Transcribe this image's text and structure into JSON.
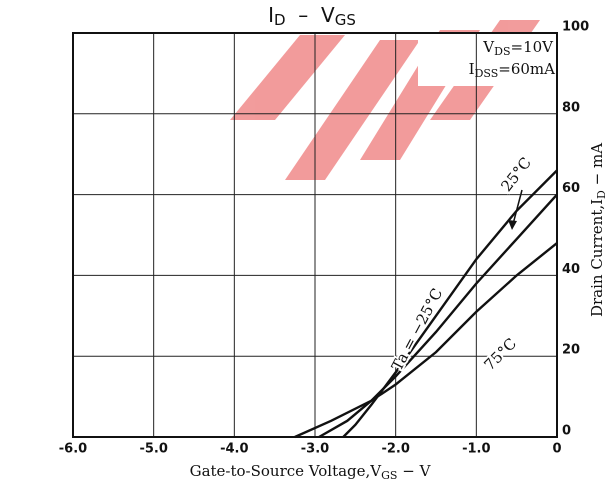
{
  "chart_data": {
    "type": "line",
    "title": [
      "I",
      "D",
      "  –  V",
      "GS"
    ],
    "x_label": [
      "Gate-to-Source Voltage,V",
      "GS",
      " − V"
    ],
    "y_label": [
      "Drain Current,I",
      "D",
      " − mA"
    ],
    "annotations": [
      [
        "V",
        "DS",
        "=10V"
      ],
      [
        "I",
        "DSS",
        "=60mA"
      ]
    ],
    "series": [
      {
        "name": "Ta = −25°C",
        "color": "#111111",
        "x": [
          -2.65,
          -2.5,
          -2.3,
          -2.0,
          -1.5,
          -1.0,
          -0.5,
          0
        ],
        "values": [
          0,
          3,
          8,
          16,
          30,
          44,
          56,
          66
        ]
      },
      {
        "name": "25°C",
        "color": "#111111",
        "x": [
          -2.95,
          -2.6,
          -2.3,
          -2.0,
          -1.5,
          -1.0,
          -0.5,
          0
        ],
        "values": [
          0,
          4,
          9,
          15,
          26,
          38,
          49,
          60
        ]
      },
      {
        "name": "75°C",
        "color": "#111111",
        "x": [
          -3.25,
          -2.8,
          -2.3,
          -2.0,
          -1.5,
          -1.0,
          -0.5,
          0
        ],
        "values": [
          0,
          4,
          9,
          13,
          21,
          31,
          40,
          48
        ]
      }
    ],
    "xlim": [
      -6,
      0
    ],
    "xticks": [
      {
        "value": -6,
        "label": "-6.0"
      },
      {
        "value": -5,
        "label": "-5.0"
      },
      {
        "value": -4,
        "label": "-4.0"
      },
      {
        "value": -3,
        "label": "-3.0"
      },
      {
        "value": -2,
        "label": "-2.0"
      },
      {
        "value": -1,
        "label": "-1.0"
      },
      0
    ],
    "ylim": [
      0,
      100
    ],
    "yticks": [
      0,
      20,
      40,
      60,
      80,
      100
    ],
    "grid": true
  }
}
